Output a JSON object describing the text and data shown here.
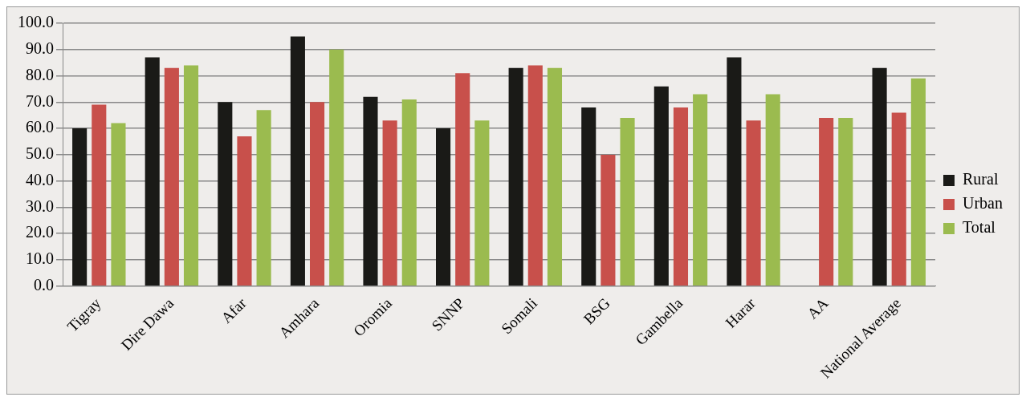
{
  "chart_data": {
    "type": "bar",
    "categories": [
      "Tigray",
      "Dire Dawa",
      "Afar",
      "Amhara",
      "Oromia",
      "SNNP",
      "Somali",
      "BSG",
      "Gambella",
      "Harar",
      "AA",
      "National Average"
    ],
    "series": [
      {
        "name": "Rural",
        "color": "#1a1a17",
        "values": [
          60,
          87,
          70,
          95,
          72,
          60,
          83,
          68,
          76,
          87,
          null,
          83
        ]
      },
      {
        "name": "Urban",
        "color": "#c8504b",
        "values": [
          69,
          83,
          57,
          70,
          63,
          81,
          84,
          50,
          68,
          63,
          64,
          66
        ]
      },
      {
        "name": "Total",
        "color": "#9bbb4f",
        "values": [
          62,
          84,
          67,
          90,
          71,
          63,
          83,
          64,
          73,
          73,
          64,
          79
        ]
      }
    ],
    "ylim": [
      0,
      100
    ],
    "yticks": [
      {
        "value": 0,
        "label": "0.0"
      },
      {
        "value": 10,
        "label": "10.0"
      },
      {
        "value": 20,
        "label": "20.0"
      },
      {
        "value": 30,
        "label": "30.0"
      },
      {
        "value": 40,
        "label": "40.0"
      },
      {
        "value": 50,
        "label": "50.0"
      },
      {
        "value": 60,
        "label": "60.0"
      },
      {
        "value": 70,
        "label": "70.0"
      },
      {
        "value": 80,
        "label": "80.0"
      },
      {
        "value": 90,
        "label": "90.0"
      },
      {
        "value": 100,
        "label": "100.0"
      }
    ],
    "grid": "y",
    "legend": "right"
  }
}
